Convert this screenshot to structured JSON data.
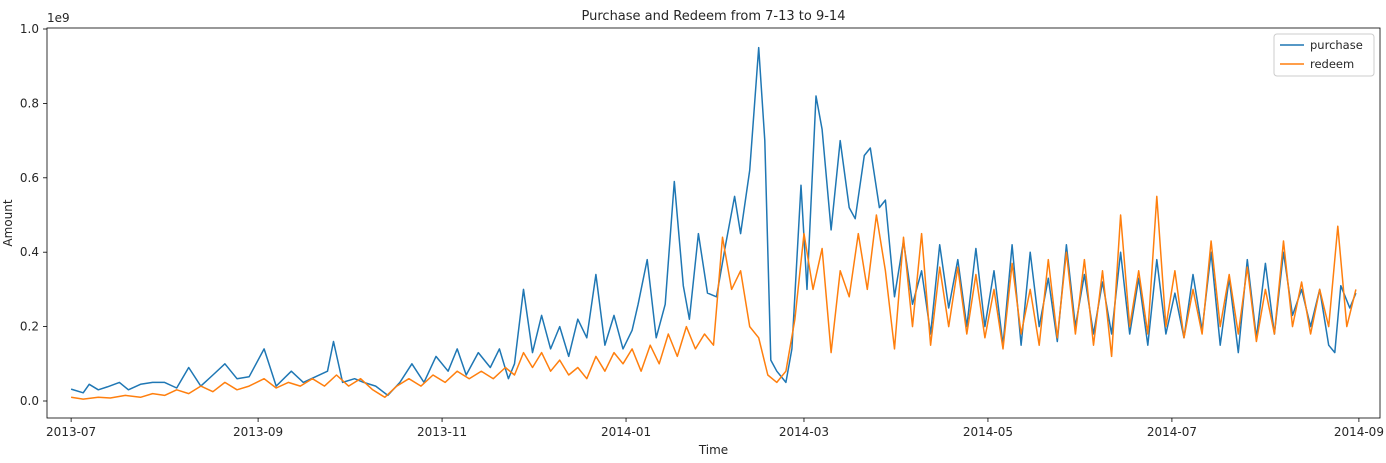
{
  "chart_data": {
    "type": "line",
    "title": "Purchase and Redeem from 7-13 to 9-14",
    "xlabel": "Time",
    "ylabel": "Amount",
    "y_scale_label": "1e9",
    "ylim": [
      0,
      1.0
    ],
    "xlim": [
      "2013-06-23",
      "2014-09-08"
    ],
    "y_ticks": [
      {
        "value": 0.0,
        "label": "0.0"
      },
      {
        "value": 0.2,
        "label": "0.2"
      },
      {
        "value": 0.4,
        "label": "0.4"
      },
      {
        "value": 0.6,
        "label": "0.6"
      },
      {
        "value": 0.8,
        "label": "0.8"
      },
      {
        "value": 1.0,
        "label": "1.0"
      }
    ],
    "x_ticks": [
      {
        "date": "2013-07-01",
        "label": "2013-07"
      },
      {
        "date": "2013-09-01",
        "label": "2013-09"
      },
      {
        "date": "2013-11-01",
        "label": "2013-11"
      },
      {
        "date": "2014-01-01",
        "label": "2014-01"
      },
      {
        "date": "2014-03-01",
        "label": "2014-03"
      },
      {
        "date": "2014-05-01",
        "label": "2014-05"
      },
      {
        "date": "2014-07-01",
        "label": "2014-07"
      },
      {
        "date": "2014-09-01",
        "label": "2014-09"
      }
    ],
    "grid": false,
    "legend_position": "top-right",
    "series": [
      {
        "name": "purchase",
        "color": "#1f77b4",
        "points": [
          [
            "2013-07-01",
            0.032
          ],
          [
            "2013-07-05",
            0.022
          ],
          [
            "2013-07-07",
            0.045
          ],
          [
            "2013-07-10",
            0.03
          ],
          [
            "2013-07-13",
            0.038
          ],
          [
            "2013-07-17",
            0.05
          ],
          [
            "2013-07-20",
            0.03
          ],
          [
            "2013-07-24",
            0.045
          ],
          [
            "2013-07-28",
            0.05
          ],
          [
            "2013-08-01",
            0.05
          ],
          [
            "2013-08-05",
            0.035
          ],
          [
            "2013-08-09",
            0.09
          ],
          [
            "2013-08-13",
            0.04
          ],
          [
            "2013-08-17",
            0.07
          ],
          [
            "2013-08-21",
            0.1
          ],
          [
            "2013-08-25",
            0.06
          ],
          [
            "2013-08-29",
            0.065
          ],
          [
            "2013-09-03",
            0.14
          ],
          [
            "2013-09-07",
            0.04
          ],
          [
            "2013-09-12",
            0.08
          ],
          [
            "2013-09-16",
            0.05
          ],
          [
            "2013-09-20",
            0.065
          ],
          [
            "2013-09-24",
            0.08
          ],
          [
            "2013-09-26",
            0.16
          ],
          [
            "2013-09-29",
            0.05
          ],
          [
            "2013-10-03",
            0.06
          ],
          [
            "2013-10-06",
            0.05
          ],
          [
            "2013-10-10",
            0.04
          ],
          [
            "2013-10-14",
            0.015
          ],
          [
            "2013-10-18",
            0.05
          ],
          [
            "2013-10-22",
            0.1
          ],
          [
            "2013-10-26",
            0.05
          ],
          [
            "2013-10-30",
            0.12
          ],
          [
            "2013-11-03",
            0.08
          ],
          [
            "2013-11-06",
            0.14
          ],
          [
            "2013-11-09",
            0.07
          ],
          [
            "2013-11-13",
            0.13
          ],
          [
            "2013-11-17",
            0.09
          ],
          [
            "2013-11-20",
            0.14
          ],
          [
            "2013-11-23",
            0.06
          ],
          [
            "2013-11-25",
            0.1
          ],
          [
            "2013-11-28",
            0.3
          ],
          [
            "2013-12-01",
            0.13
          ],
          [
            "2013-12-04",
            0.23
          ],
          [
            "2013-12-07",
            0.14
          ],
          [
            "2013-12-10",
            0.2
          ],
          [
            "2013-12-13",
            0.12
          ],
          [
            "2013-12-16",
            0.22
          ],
          [
            "2013-12-19",
            0.17
          ],
          [
            "2013-12-22",
            0.34
          ],
          [
            "2013-12-25",
            0.15
          ],
          [
            "2013-12-28",
            0.23
          ],
          [
            "2013-12-31",
            0.14
          ],
          [
            "2014-01-03",
            0.19
          ],
          [
            "2014-01-05",
            0.26
          ],
          [
            "2014-01-08",
            0.38
          ],
          [
            "2014-01-11",
            0.17
          ],
          [
            "2014-01-14",
            0.26
          ],
          [
            "2014-01-17",
            0.59
          ],
          [
            "2014-01-20",
            0.31
          ],
          [
            "2014-01-22",
            0.22
          ],
          [
            "2014-01-25",
            0.45
          ],
          [
            "2014-01-28",
            0.29
          ],
          [
            "2014-01-31",
            0.28
          ],
          [
            "2014-02-03",
            0.42
          ],
          [
            "2014-02-06",
            0.55
          ],
          [
            "2014-02-08",
            0.45
          ],
          [
            "2014-02-11",
            0.62
          ],
          [
            "2014-02-14",
            0.95
          ],
          [
            "2014-02-16",
            0.7
          ],
          [
            "2014-02-18",
            0.11
          ],
          [
            "2014-02-20",
            0.08
          ],
          [
            "2014-02-23",
            0.05
          ],
          [
            "2014-02-25",
            0.14
          ],
          [
            "2014-02-28",
            0.58
          ],
          [
            "2014-03-02",
            0.3
          ],
          [
            "2014-03-05",
            0.82
          ],
          [
            "2014-03-07",
            0.73
          ],
          [
            "2014-03-10",
            0.46
          ],
          [
            "2014-03-13",
            0.7
          ],
          [
            "2014-03-16",
            0.52
          ],
          [
            "2014-03-18",
            0.49
          ],
          [
            "2014-03-21",
            0.66
          ],
          [
            "2014-03-23",
            0.68
          ],
          [
            "2014-03-26",
            0.52
          ],
          [
            "2014-03-28",
            0.54
          ],
          [
            "2014-03-31",
            0.28
          ],
          [
            "2014-04-03",
            0.43
          ],
          [
            "2014-04-06",
            0.26
          ],
          [
            "2014-04-09",
            0.35
          ],
          [
            "2014-04-12",
            0.18
          ],
          [
            "2014-04-15",
            0.42
          ],
          [
            "2014-04-18",
            0.25
          ],
          [
            "2014-04-21",
            0.38
          ],
          [
            "2014-04-24",
            0.2
          ],
          [
            "2014-04-27",
            0.41
          ],
          [
            "2014-04-30",
            0.2
          ],
          [
            "2014-05-03",
            0.35
          ],
          [
            "2014-05-06",
            0.15
          ],
          [
            "2014-05-09",
            0.42
          ],
          [
            "2014-05-12",
            0.15
          ],
          [
            "2014-05-15",
            0.4
          ],
          [
            "2014-05-18",
            0.2
          ],
          [
            "2014-05-21",
            0.33
          ],
          [
            "2014-05-24",
            0.16
          ],
          [
            "2014-05-27",
            0.42
          ],
          [
            "2014-05-30",
            0.2
          ],
          [
            "2014-06-02",
            0.34
          ],
          [
            "2014-06-05",
            0.18
          ],
          [
            "2014-06-08",
            0.32
          ],
          [
            "2014-06-11",
            0.18
          ],
          [
            "2014-06-14",
            0.4
          ],
          [
            "2014-06-17",
            0.18
          ],
          [
            "2014-06-20",
            0.33
          ],
          [
            "2014-06-23",
            0.15
          ],
          [
            "2014-06-26",
            0.38
          ],
          [
            "2014-06-29",
            0.18
          ],
          [
            "2014-07-02",
            0.29
          ],
          [
            "2014-07-05",
            0.17
          ],
          [
            "2014-07-08",
            0.34
          ],
          [
            "2014-07-11",
            0.19
          ],
          [
            "2014-07-14",
            0.4
          ],
          [
            "2014-07-17",
            0.15
          ],
          [
            "2014-07-20",
            0.33
          ],
          [
            "2014-07-23",
            0.13
          ],
          [
            "2014-07-26",
            0.38
          ],
          [
            "2014-07-29",
            0.17
          ],
          [
            "2014-08-01",
            0.37
          ],
          [
            "2014-08-04",
            0.18
          ],
          [
            "2014-08-07",
            0.4
          ],
          [
            "2014-08-10",
            0.23
          ],
          [
            "2014-08-13",
            0.3
          ],
          [
            "2014-08-16",
            0.2
          ],
          [
            "2014-08-19",
            0.3
          ],
          [
            "2014-08-22",
            0.15
          ],
          [
            "2014-08-24",
            0.13
          ],
          [
            "2014-08-26",
            0.31
          ],
          [
            "2014-08-29",
            0.25
          ],
          [
            "2014-08-31",
            0.29
          ]
        ]
      },
      {
        "name": "redeem",
        "color": "#ff7f0e",
        "points": [
          [
            "2013-07-01",
            0.01
          ],
          [
            "2013-07-05",
            0.005
          ],
          [
            "2013-07-10",
            0.01
          ],
          [
            "2013-07-14",
            0.008
          ],
          [
            "2013-07-19",
            0.015
          ],
          [
            "2013-07-24",
            0.01
          ],
          [
            "2013-07-28",
            0.02
          ],
          [
            "2013-08-01",
            0.015
          ],
          [
            "2013-08-05",
            0.03
          ],
          [
            "2013-08-09",
            0.02
          ],
          [
            "2013-08-13",
            0.04
          ],
          [
            "2013-08-17",
            0.025
          ],
          [
            "2013-08-21",
            0.05
          ],
          [
            "2013-08-25",
            0.03
          ],
          [
            "2013-08-29",
            0.04
          ],
          [
            "2013-09-03",
            0.06
          ],
          [
            "2013-09-07",
            0.035
          ],
          [
            "2013-09-11",
            0.05
          ],
          [
            "2013-09-15",
            0.04
          ],
          [
            "2013-09-19",
            0.06
          ],
          [
            "2013-09-23",
            0.04
          ],
          [
            "2013-09-27",
            0.07
          ],
          [
            "2013-10-01",
            0.04
          ],
          [
            "2013-10-05",
            0.06
          ],
          [
            "2013-10-09",
            0.03
          ],
          [
            "2013-10-13",
            0.01
          ],
          [
            "2013-10-17",
            0.04
          ],
          [
            "2013-10-21",
            0.06
          ],
          [
            "2013-10-25",
            0.04
          ],
          [
            "2013-10-29",
            0.07
          ],
          [
            "2013-11-02",
            0.05
          ],
          [
            "2013-11-06",
            0.08
          ],
          [
            "2013-11-10",
            0.06
          ],
          [
            "2013-11-14",
            0.08
          ],
          [
            "2013-11-18",
            0.06
          ],
          [
            "2013-11-22",
            0.09
          ],
          [
            "2013-11-25",
            0.07
          ],
          [
            "2013-11-28",
            0.13
          ],
          [
            "2013-12-01",
            0.09
          ],
          [
            "2013-12-04",
            0.13
          ],
          [
            "2013-12-07",
            0.08
          ],
          [
            "2013-12-10",
            0.11
          ],
          [
            "2013-12-13",
            0.07
          ],
          [
            "2013-12-16",
            0.09
          ],
          [
            "2013-12-19",
            0.06
          ],
          [
            "2013-12-22",
            0.12
          ],
          [
            "2013-12-25",
            0.08
          ],
          [
            "2013-12-28",
            0.13
          ],
          [
            "2013-12-31",
            0.1
          ],
          [
            "2014-01-03",
            0.14
          ],
          [
            "2014-01-06",
            0.08
          ],
          [
            "2014-01-09",
            0.15
          ],
          [
            "2014-01-12",
            0.1
          ],
          [
            "2014-01-15",
            0.18
          ],
          [
            "2014-01-18",
            0.12
          ],
          [
            "2014-01-21",
            0.2
          ],
          [
            "2014-01-24",
            0.14
          ],
          [
            "2014-01-27",
            0.18
          ],
          [
            "2014-01-30",
            0.15
          ],
          [
            "2014-02-02",
            0.44
          ],
          [
            "2014-02-05",
            0.3
          ],
          [
            "2014-02-08",
            0.35
          ],
          [
            "2014-02-11",
            0.2
          ],
          [
            "2014-02-14",
            0.17
          ],
          [
            "2014-02-17",
            0.07
          ],
          [
            "2014-02-20",
            0.05
          ],
          [
            "2014-02-23",
            0.08
          ],
          [
            "2014-02-26",
            0.22
          ],
          [
            "2014-03-01",
            0.45
          ],
          [
            "2014-03-04",
            0.3
          ],
          [
            "2014-03-07",
            0.41
          ],
          [
            "2014-03-10",
            0.13
          ],
          [
            "2014-03-13",
            0.35
          ],
          [
            "2014-03-16",
            0.28
          ],
          [
            "2014-03-19",
            0.45
          ],
          [
            "2014-03-22",
            0.3
          ],
          [
            "2014-03-25",
            0.5
          ],
          [
            "2014-03-28",
            0.35
          ],
          [
            "2014-03-31",
            0.14
          ],
          [
            "2014-04-03",
            0.44
          ],
          [
            "2014-04-06",
            0.2
          ],
          [
            "2014-04-09",
            0.45
          ],
          [
            "2014-04-12",
            0.15
          ],
          [
            "2014-04-15",
            0.36
          ],
          [
            "2014-04-18",
            0.2
          ],
          [
            "2014-04-21",
            0.36
          ],
          [
            "2014-04-24",
            0.18
          ],
          [
            "2014-04-27",
            0.34
          ],
          [
            "2014-04-30",
            0.17
          ],
          [
            "2014-05-03",
            0.3
          ],
          [
            "2014-05-06",
            0.14
          ],
          [
            "2014-05-09",
            0.37
          ],
          [
            "2014-05-12",
            0.18
          ],
          [
            "2014-05-15",
            0.3
          ],
          [
            "2014-05-18",
            0.15
          ],
          [
            "2014-05-21",
            0.38
          ],
          [
            "2014-05-24",
            0.17
          ],
          [
            "2014-05-27",
            0.4
          ],
          [
            "2014-05-30",
            0.18
          ],
          [
            "2014-06-02",
            0.38
          ],
          [
            "2014-06-05",
            0.15
          ],
          [
            "2014-06-08",
            0.35
          ],
          [
            "2014-06-11",
            0.12
          ],
          [
            "2014-06-14",
            0.5
          ],
          [
            "2014-06-17",
            0.2
          ],
          [
            "2014-06-20",
            0.35
          ],
          [
            "2014-06-23",
            0.18
          ],
          [
            "2014-06-26",
            0.55
          ],
          [
            "2014-06-29",
            0.2
          ],
          [
            "2014-07-02",
            0.35
          ],
          [
            "2014-07-05",
            0.17
          ],
          [
            "2014-07-08",
            0.3
          ],
          [
            "2014-07-11",
            0.18
          ],
          [
            "2014-07-14",
            0.43
          ],
          [
            "2014-07-17",
            0.2
          ],
          [
            "2014-07-20",
            0.34
          ],
          [
            "2014-07-23",
            0.18
          ],
          [
            "2014-07-26",
            0.36
          ],
          [
            "2014-07-29",
            0.16
          ],
          [
            "2014-08-01",
            0.3
          ],
          [
            "2014-08-04",
            0.18
          ],
          [
            "2014-08-07",
            0.43
          ],
          [
            "2014-08-10",
            0.2
          ],
          [
            "2014-08-13",
            0.32
          ],
          [
            "2014-08-16",
            0.18
          ],
          [
            "2014-08-19",
            0.3
          ],
          [
            "2014-08-22",
            0.2
          ],
          [
            "2014-08-25",
            0.47
          ],
          [
            "2014-08-28",
            0.2
          ],
          [
            "2014-08-31",
            0.3
          ]
        ]
      }
    ]
  }
}
